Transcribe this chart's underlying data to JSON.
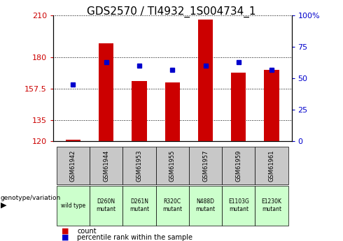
{
  "title": "GDS2570 / TI4932_1S004734_1",
  "samples": [
    "GSM61942",
    "GSM61944",
    "GSM61953",
    "GSM61955",
    "GSM61957",
    "GSM61959",
    "GSM61961"
  ],
  "genotypes": [
    "wild type",
    "D260N\nmutant",
    "D261N\nmutant",
    "R320C\nmutant",
    "N488D\nmutant",
    "E1103G\nmutant",
    "E1230K\nmutant"
  ],
  "counts": [
    121,
    190,
    163,
    162,
    207,
    169,
    171
  ],
  "percentile_ranks": [
    45,
    63,
    60,
    57,
    60,
    63,
    57
  ],
  "ymin": 120,
  "ymax": 210,
  "pct_min": 0,
  "pct_max": 100,
  "yticks_left": [
    120,
    135,
    157.5,
    180,
    210
  ],
  "yticks_right": [
    0,
    25,
    50,
    75,
    100
  ],
  "bar_color": "#cc0000",
  "marker_color": "#0000cc",
  "title_fontsize": 11,
  "axis_label_color_left": "#cc0000",
  "axis_label_color_right": "#0000cc",
  "bar_width": 0.45,
  "legend_label_count": "count",
  "legend_label_pct": "percentile rank within the sample",
  "bg_gsm": "#c8c8c8",
  "bg_wt": "#ccffcc",
  "bg_geno": "#88ee88"
}
